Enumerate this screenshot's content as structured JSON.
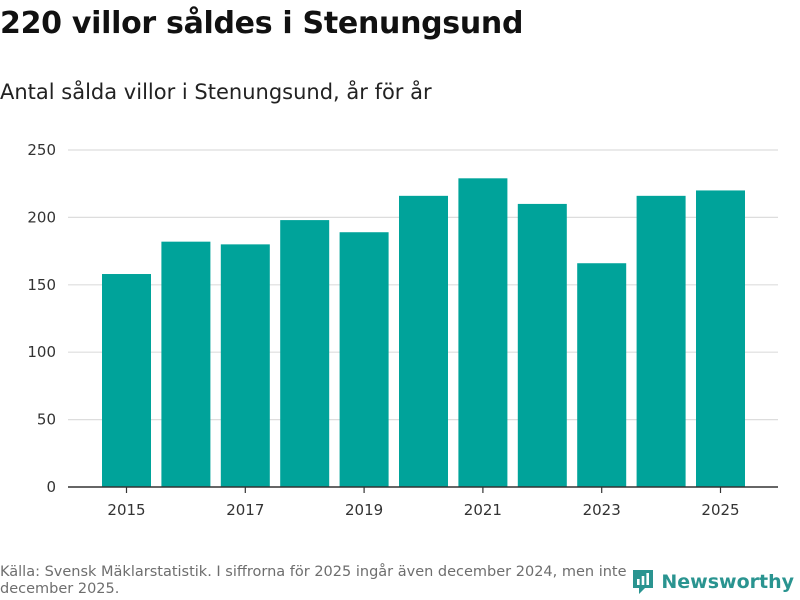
{
  "header": {
    "title": "220 villor såldes i Stenungsund",
    "subtitle": "Antal sålda villor i Stenungsund, år för år"
  },
  "footer": {
    "source": "Källa: Svensk Mäklarstatistik. I siffrorna för 2025 ingår även december 2024, men inte december 2025.",
    "brand": "Newsworthy",
    "brand_icon": "newsworthy-logo-icon"
  },
  "colors": {
    "bar": "#00A39A",
    "grid": "#dddddd",
    "axis": "#333333",
    "brand": "#2a9490"
  },
  "chart_data": {
    "type": "bar",
    "title": "220 villor såldes i Stenungsund",
    "subtitle": "Antal sålda villor i Stenungsund, år för år",
    "xlabel": "",
    "ylabel": "",
    "categories": [
      "2015",
      "2016",
      "2017",
      "2018",
      "2019",
      "2020",
      "2021",
      "2022",
      "2023",
      "2024",
      "2025"
    ],
    "values": [
      158,
      182,
      180,
      198,
      189,
      216,
      229,
      210,
      166,
      216,
      220
    ],
    "x_tick_labels": [
      "2015",
      "2017",
      "2019",
      "2021",
      "2023",
      "2025"
    ],
    "y_ticks": [
      0,
      50,
      100,
      150,
      200,
      250
    ],
    "ylim": [
      0,
      250
    ],
    "grid": true,
    "legend": "none"
  }
}
